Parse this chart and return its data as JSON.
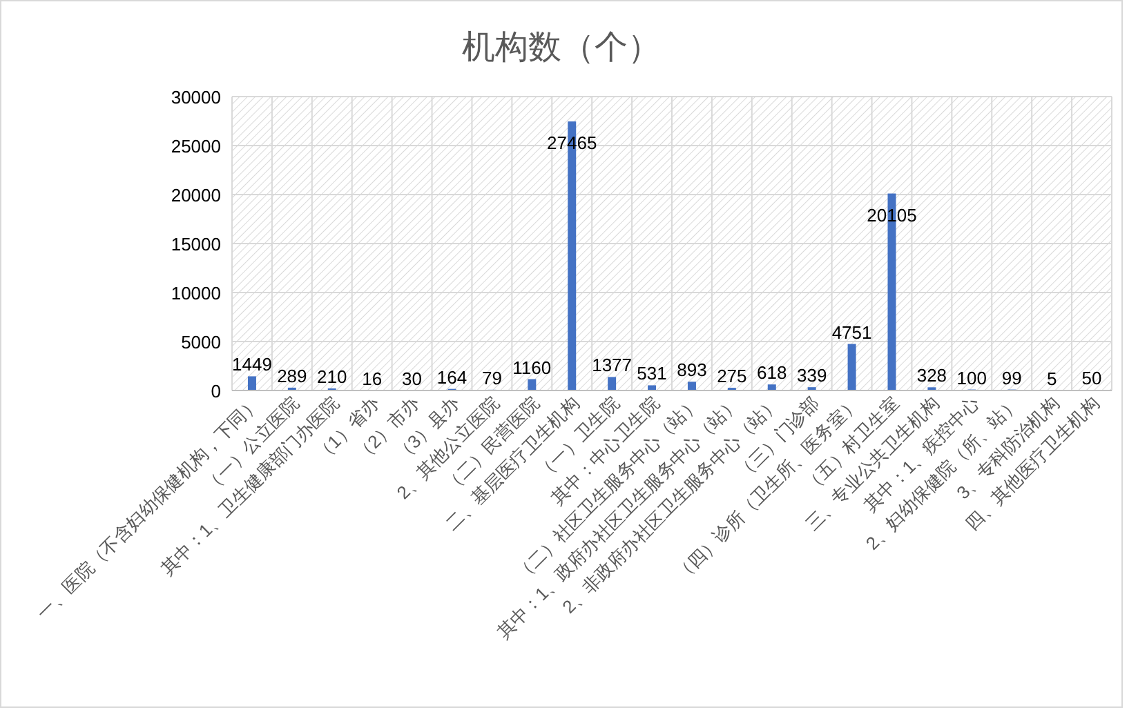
{
  "chart_data": {
    "type": "bar",
    "title": "机构数（个）",
    "categories": [
      "一、医院（不含妇幼保健机构，下同）",
      "（一）公立医院",
      "其中：1、卫生健康部门办医院",
      "（1）省办",
      "（2）市办",
      "（3）县办",
      "2、其他公立医院",
      "（二）民营医院",
      "二、基层医疗卫生机构",
      "（一）卫生院",
      "其中：中心卫生院",
      "（二）社区卫生服务中心（站）",
      "其中：1、政府办社区卫生服务中心（站）",
      "2、非政府办社区卫生服务中心（站）",
      "（三）门诊部",
      "（四）诊所（卫生所、医务室）",
      "（五）村卫生室",
      "三、专业公共卫生机构",
      "其中：1、疾控中心",
      "2、妇幼保健院（所、站）",
      "3、专科防治机构",
      "四、其他医疗卫生机构"
    ],
    "values": [
      1449,
      289,
      210,
      16,
      30,
      164,
      79,
      1160,
      27465,
      1377,
      531,
      893,
      275,
      618,
      339,
      4751,
      20105,
      328,
      100,
      99,
      5,
      50
    ],
    "color": "#4472c4",
    "ylim": [
      0,
      30000
    ],
    "yticks": [
      0,
      5000,
      10000,
      15000,
      20000,
      25000,
      30000
    ],
    "grid": true,
    "data_labels": true
  }
}
